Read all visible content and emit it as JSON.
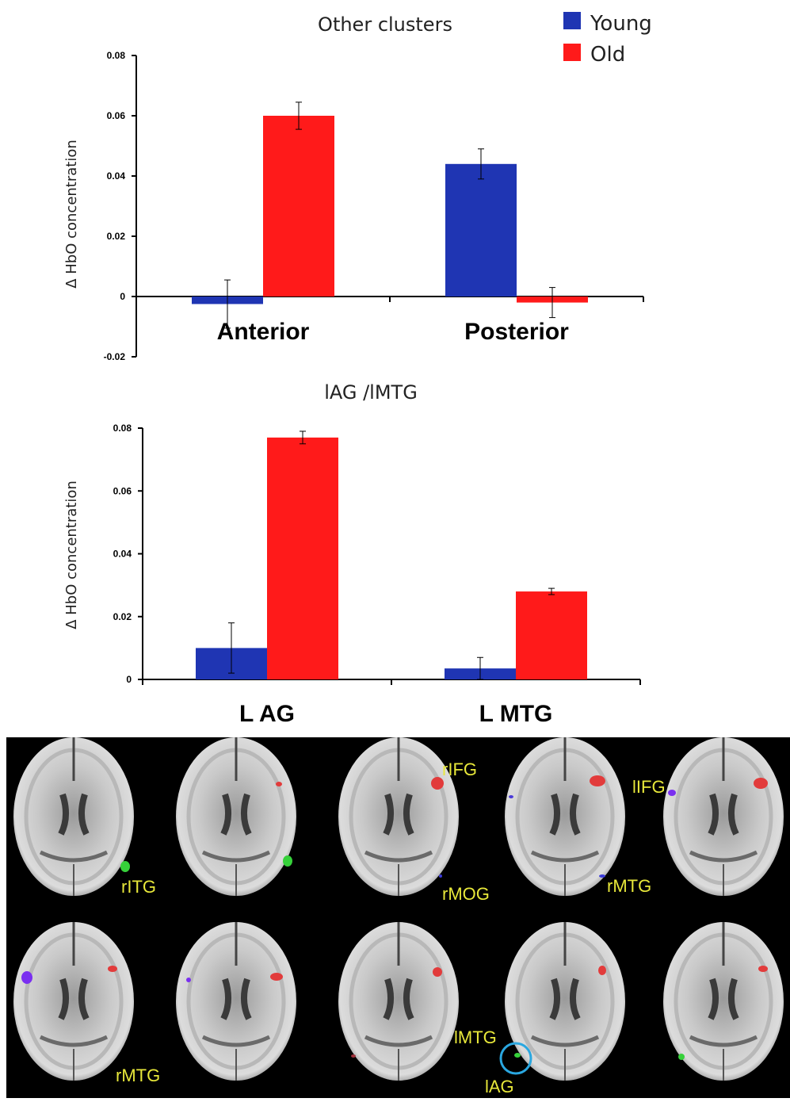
{
  "legend": {
    "items": [
      {
        "label": "Young",
        "color": "#1f35b3"
      },
      {
        "label": "Old",
        "color": "#ff1a1a"
      }
    ]
  },
  "chart_data": [
    {
      "type": "bar",
      "title": "Other clusters",
      "ylabel": "Δ HbO concentration",
      "categories": [
        "Anterior",
        "Posterior"
      ],
      "series": [
        {
          "name": "Young",
          "values": [
            -0.0025,
            0.044
          ],
          "errors": [
            0.008,
            0.005
          ]
        },
        {
          "name": "Old",
          "values": [
            0.06,
            -0.002
          ],
          "errors": [
            0.0045,
            0.005
          ]
        }
      ],
      "ylim": [
        -0.02,
        0.08
      ],
      "yticks": [
        "-0.02",
        "0",
        "0.02",
        "0.04",
        "0.06",
        "0.08"
      ],
      "legend_position": "top-right"
    },
    {
      "type": "bar",
      "title": "lAG /lMTG",
      "ylabel": "Δ HbO concentration",
      "categories": [
        "L AG",
        "L MTG"
      ],
      "series": [
        {
          "name": "Young",
          "values": [
            0.01,
            0.0035
          ],
          "errors": [
            0.008,
            0.0035
          ]
        },
        {
          "name": "Old",
          "values": [
            0.077,
            0.028
          ],
          "errors": [
            0.002,
            0.001
          ]
        }
      ],
      "ylim": [
        0,
        0.08
      ],
      "yticks": [
        "0",
        "0.02",
        "0.04",
        "0.06",
        "0.08"
      ]
    }
  ],
  "brain_labels": [
    "rITG",
    "rIFG",
    "rMOG",
    "rMTG",
    "lIFG",
    "rMTG",
    "lMTG",
    "lAG"
  ],
  "colors": {
    "young": "#1f35b3",
    "old": "#ff1a1a",
    "panel_bg": "#000000",
    "label": "#e8e83a",
    "highlight": "#2aa7e0"
  }
}
